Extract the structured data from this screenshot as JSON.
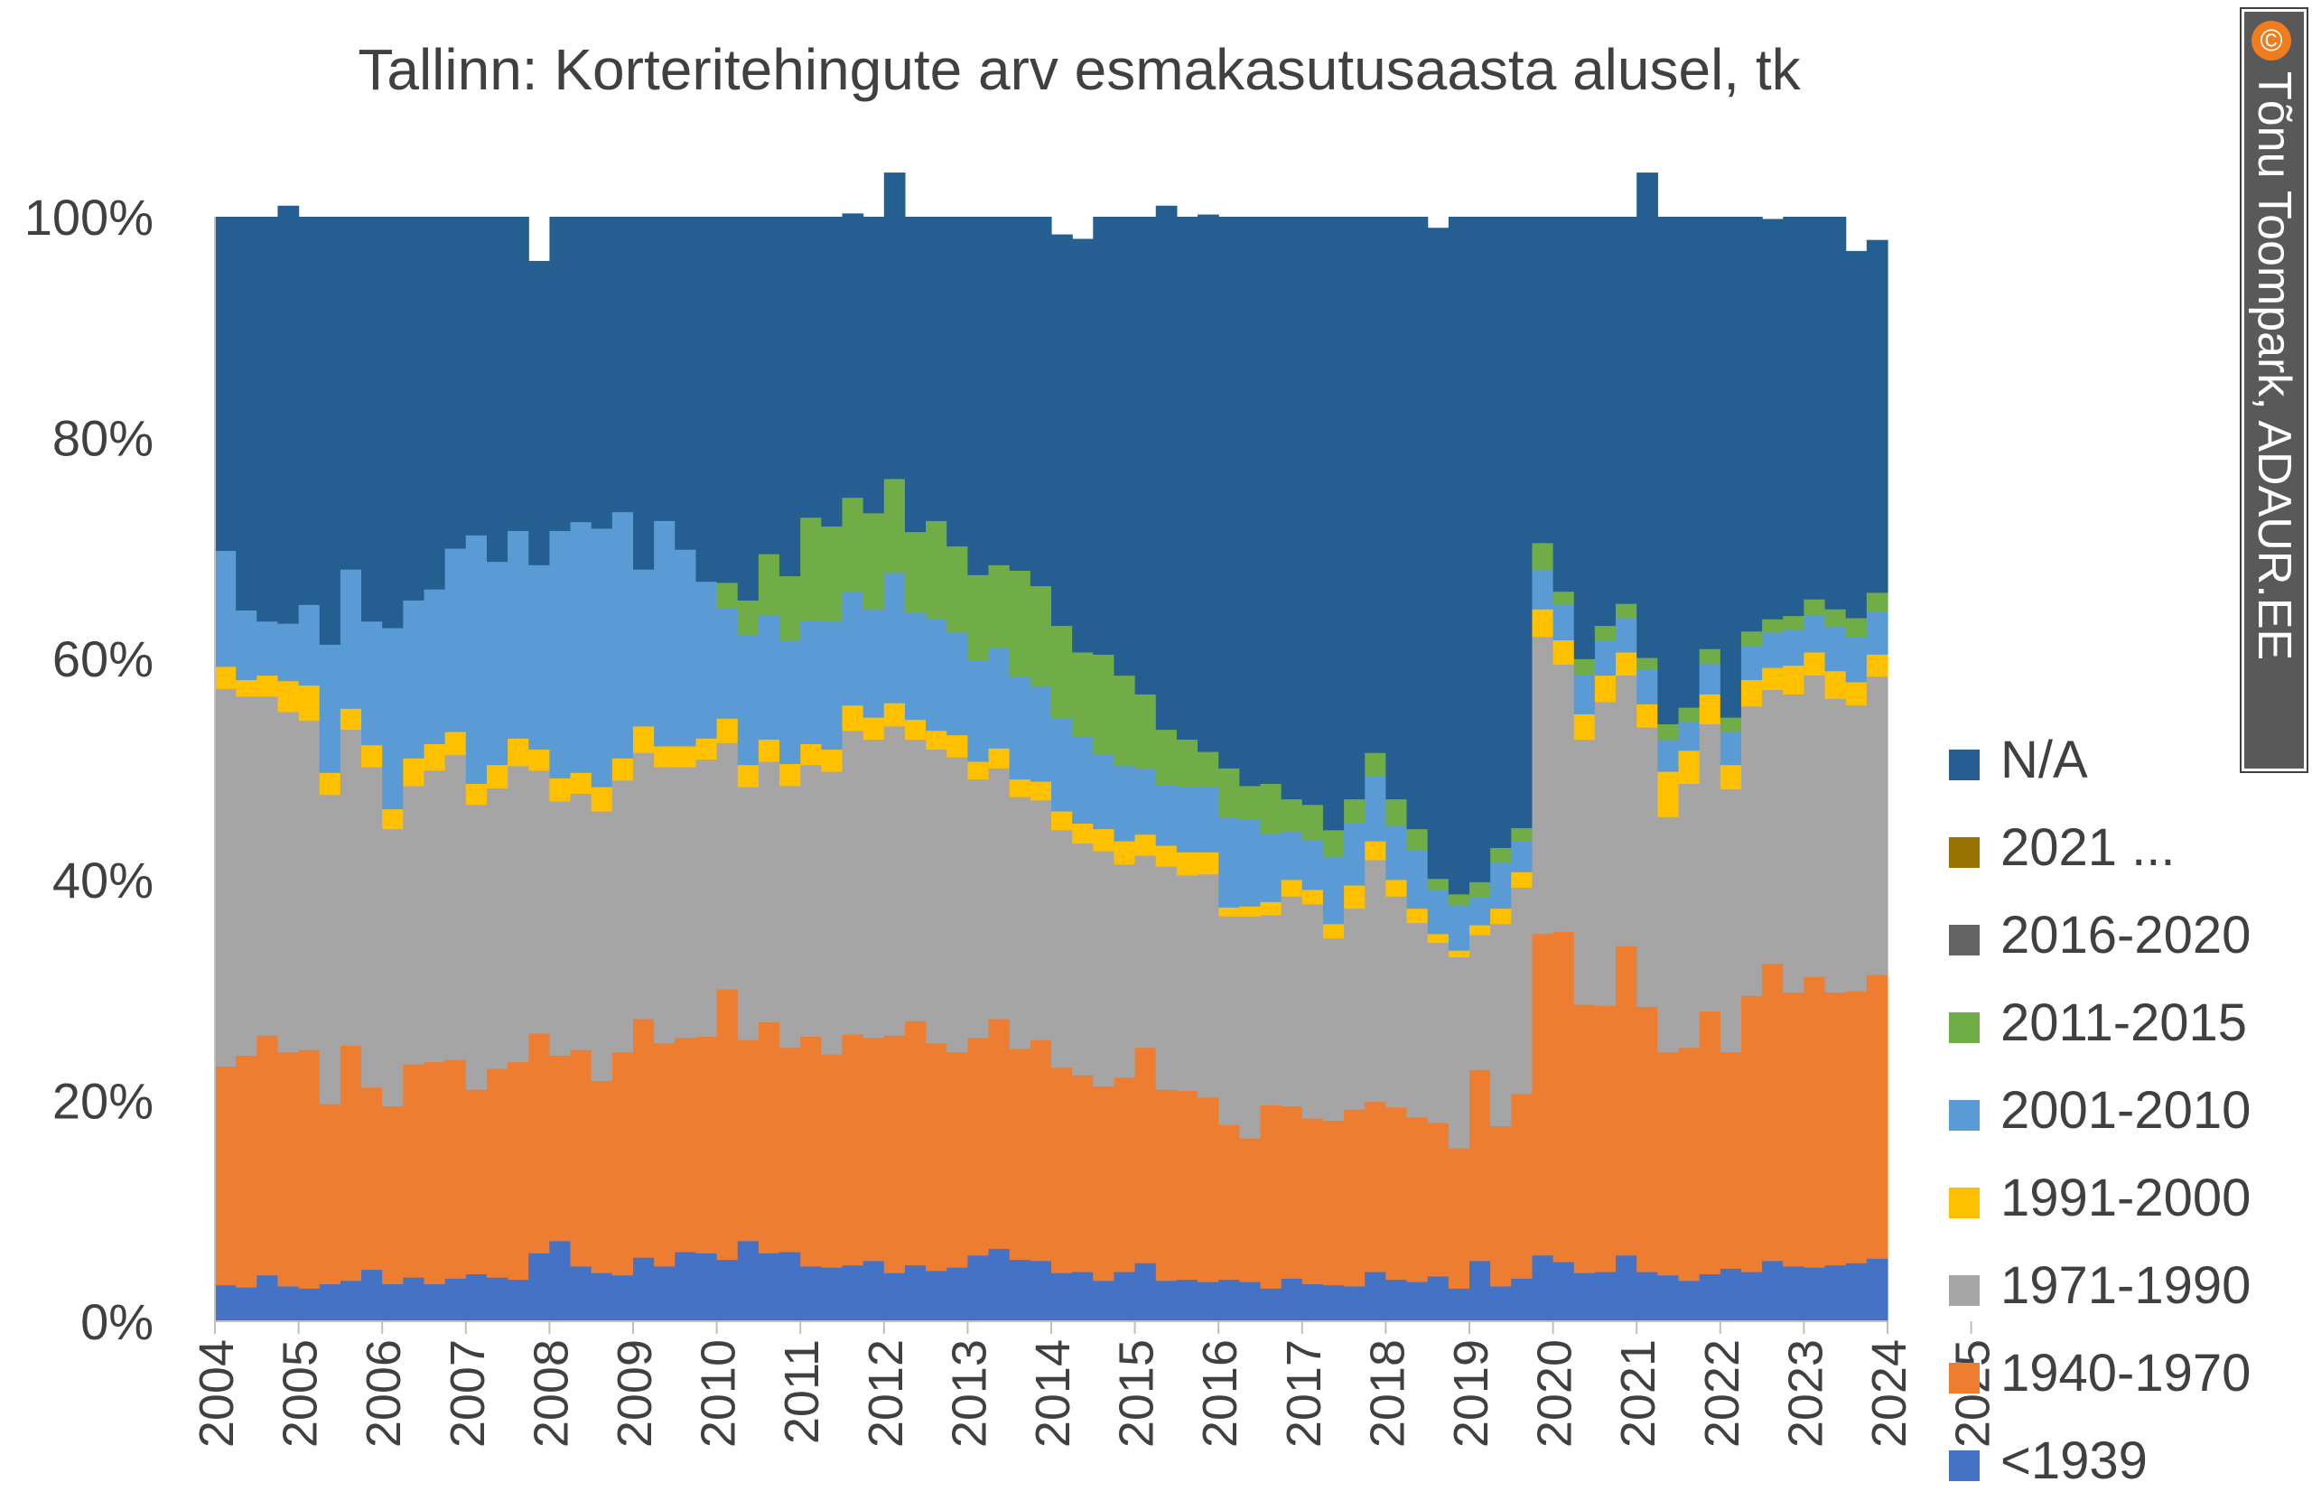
{
  "chart_data": {
    "type": "bar",
    "stacked": "percent",
    "title": "Tallinn: Korteritehingute arv esmakasutusaasta alusel, tk",
    "xlabel": "",
    "ylabel": "",
    "ylim": [
      0,
      100
    ],
    "y_ticks": [
      "0%",
      "20%",
      "40%",
      "60%",
      "80%",
      "100%"
    ],
    "x_tick_labels": [
      "2004",
      "2005",
      "2006",
      "2007",
      "2008",
      "2009",
      "2010",
      "2011",
      "2012",
      "2013",
      "2014",
      "2015",
      "2016",
      "2017",
      "2018",
      "2019",
      "2020",
      "2021",
      "2022",
      "2023",
      "2024",
      "2025"
    ],
    "legend_position": "right",
    "grid": false,
    "period_unit": "quarter",
    "start": "2004 Q1",
    "end": "2025 Q2",
    "series": [
      {
        "name": "<1939",
        "color": "#4472C4",
        "values": [
          3.3,
          3.1,
          4.2,
          3.2,
          3.0,
          3.4,
          3.7,
          4.7,
          3.4,
          4.0,
          3.4,
          3.9,
          4.3,
          4.0,
          3.8,
          6.2,
          7.3,
          5.0,
          4.4,
          4.2,
          5.8,
          5.0,
          6.3,
          6.2,
          5.6,
          7.3,
          6.2,
          6.3,
          5.0,
          4.9,
          5.1,
          5.5,
          4.4,
          5.1,
          4.6,
          4.9,
          6.0,
          6.6,
          5.6,
          5.5,
          4.4,
          4.5,
          3.7,
          4.5,
          5.3,
          3.7,
          3.8,
          3.6,
          3.8,
          3.6,
          3.0,
          3.9,
          3.4,
          3.3,
          3.2,
          4.5,
          3.8,
          3.6,
          4.1,
          3.0,
          5.5,
          3.2,
          3.9,
          6.0,
          5.4,
          4.4,
          4.5,
          6.0,
          4.5,
          4.2,
          3.7,
          4.3,
          4.8,
          4.5,
          5.5,
          5.0,
          4.9,
          5.1,
          5.3,
          5.7
        ]
      },
      {
        "name": "1940-1970",
        "color": "#ED7D31",
        "values": [
          19.8,
          21.0,
          21.7,
          21.2,
          21.6,
          16.3,
          21.3,
          16.5,
          16.1,
          19.3,
          20.1,
          19.8,
          16.7,
          18.9,
          19.7,
          19.9,
          16.8,
          19.6,
          17.4,
          20.2,
          21.6,
          20.2,
          19.4,
          19.6,
          24.5,
          18.2,
          20.9,
          18.5,
          20.8,
          19.3,
          20.9,
          20.2,
          21.5,
          22.1,
          20.6,
          19.5,
          19.7,
          20.8,
          19.1,
          20.0,
          18.6,
          17.8,
          17.6,
          17.6,
          19.5,
          17.3,
          17.1,
          16.7,
          14.0,
          13.0,
          16.6,
          15.6,
          15.0,
          14.9,
          16.0,
          15.4,
          15.6,
          14.9,
          13.9,
          12.7,
          17.3,
          14.5,
          16.7,
          29.1,
          29.9,
          24.3,
          24.1,
          28.0,
          24.0,
          20.2,
          21.1,
          23.8,
          19.6,
          25.0,
          26.9,
          24.8,
          26.3,
          24.7,
          24.6,
          25.7
        ]
      },
      {
        "name": "1971-1990",
        "color": "#A5A5A5",
        "values": [
          34.2,
          32.5,
          30.7,
          30.8,
          29.8,
          28.0,
          28.6,
          29.0,
          25.1,
          25.2,
          26.4,
          27.6,
          25.8,
          25.4,
          26.8,
          23.8,
          23.0,
          23.2,
          24.4,
          24.6,
          24.1,
          25.0,
          24.5,
          25.1,
          22.3,
          22.9,
          23.6,
          23.7,
          24.6,
          25.6,
          27.5,
          27.0,
          28.0,
          25.5,
          26.6,
          26.7,
          23.4,
          22.7,
          22.8,
          21.7,
          21.5,
          21.0,
          21.3,
          19.3,
          17.4,
          20.2,
          19.5,
          20.2,
          18.9,
          20.1,
          17.2,
          19.0,
          19.4,
          16.5,
          18.2,
          21.9,
          19.1,
          17.6,
          16.3,
          17.3,
          12.2,
          18.3,
          18.7,
          26.9,
          24.2,
          24.0,
          27.5,
          24.5,
          25.3,
          21.3,
          23.9,
          26.0,
          23.8,
          26.2,
          24.8,
          27.0,
          27.3,
          26.6,
          25.9,
          27.0
        ]
      },
      {
        "name": "1991-2000",
        "color": "#FFC000",
        "values": [
          2.0,
          1.5,
          1.9,
          2.8,
          3.2,
          2.0,
          1.9,
          2.0,
          1.8,
          2.5,
          2.4,
          2.1,
          1.9,
          2.1,
          2.5,
          1.9,
          2.1,
          1.9,
          2.2,
          2.0,
          2.4,
          1.9,
          1.9,
          1.9,
          2.2,
          2.0,
          2.0,
          2.0,
          1.9,
          2.0,
          2.3,
          2.0,
          2.1,
          1.8,
          1.7,
          2.0,
          1.6,
          1.8,
          1.6,
          1.7,
          1.7,
          1.8,
          2.0,
          2.1,
          1.9,
          1.9,
          2.1,
          2.0,
          0.8,
          0.9,
          1.2,
          1.5,
          1.3,
          1.3,
          2.1,
          1.7,
          1.5,
          1.3,
          0.8,
          0.6,
          0.9,
          1.4,
          1.4,
          2.5,
          2.2,
          2.3,
          2.4,
          2.1,
          2.1,
          4.1,
          3.0,
          2.7,
          2.2,
          2.4,
          2.0,
          2.6,
          2.1,
          2.5,
          2.1,
          2.0
        ]
      },
      {
        "name": "2001-2010",
        "color": "#5B9BD5",
        "values": [
          10.5,
          6.3,
          4.9,
          5.2,
          7.3,
          11.6,
          12.6,
          11.2,
          16.4,
          14.3,
          14.0,
          16.6,
          22.5,
          18.4,
          18.8,
          16.7,
          22.4,
          22.7,
          23.4,
          22.3,
          14.2,
          20.4,
          17.8,
          14.2,
          10.0,
          11.8,
          11.3,
          11.2,
          11.2,
          11.6,
          10.3,
          9.8,
          11.8,
          9.7,
          10.1,
          9.3,
          9.2,
          9.1,
          9.3,
          8.6,
          8.4,
          7.9,
          6.8,
          6.8,
          6.0,
          5.5,
          5.9,
          5.9,
          8.1,
          7.9,
          6.2,
          4.4,
          4.5,
          6.1,
          5.6,
          5.9,
          4.9,
          5.3,
          4.0,
          4.1,
          2.5,
          4.2,
          2.8,
          3.6,
          3.2,
          3.6,
          3.2,
          3.1,
          3.1,
          2.9,
          2.6,
          2.8,
          3.0,
          3.1,
          3.2,
          3.2,
          3.4,
          4.0,
          4.1,
          3.9
        ]
      },
      {
        "name": "2011-2015",
        "color": "#70AD47",
        "values": [
          0,
          0,
          0,
          0,
          0,
          0,
          0,
          0,
          0,
          0,
          0,
          0,
          0,
          0,
          0,
          0,
          0,
          0,
          0,
          0,
          0,
          0,
          0,
          0,
          2.3,
          3.1,
          5.5,
          5.8,
          9.3,
          8.6,
          8.5,
          8.7,
          8.5,
          7.3,
          8.9,
          7.8,
          7.7,
          7.5,
          9.6,
          9.1,
          8.4,
          7.6,
          9.0,
          8.2,
          6.7,
          5.0,
          4.3,
          3.2,
          4.5,
          3.0,
          4.5,
          2.9,
          3.2,
          2.4,
          2.2,
          2.1,
          2.4,
          1.9,
          1.0,
          1.0,
          1.4,
          1.3,
          1.2,
          2.4,
          1.2,
          1.4,
          1.3,
          1.3,
          1.1,
          1.4,
          1.3,
          1.3,
          1.3,
          1.3,
          1.2,
          1.3,
          1.4,
          1.6,
          1.7,
          1.7
        ]
      },
      {
        "name": "2016-2020",
        "color": "#636363",
        "values": [
          0,
          0,
          0,
          0,
          0,
          0,
          0,
          0,
          0,
          0,
          0,
          0,
          0,
          0,
          0,
          0,
          0,
          0,
          0,
          0,
          0,
          0,
          0,
          0,
          0,
          0,
          0,
          0,
          0,
          0,
          0,
          0,
          0,
          0,
          0,
          0,
          0,
          0,
          0,
          0,
          0,
          0,
          0,
          0,
          0,
          0,
          0,
          0,
          0,
          0,
          0,
          0,
          0,
          0,
          0,
          0,
          0,
          0,
          0,
          0,
          0,
          0,
          0,
          0,
          0,
          0,
          0,
          0,
          0,
          0,
          0,
          0,
          0,
          0,
          0,
          0,
          0,
          0,
          0,
          0
        ]
      },
      {
        "name": "2021 ...",
        "color": "#997300",
        "values": [
          0,
          0,
          0,
          0,
          0,
          0,
          0,
          0,
          0,
          0,
          0,
          0,
          0,
          0,
          0,
          0,
          0,
          0,
          0,
          0,
          0,
          0,
          0,
          0,
          0,
          0,
          0,
          0,
          0,
          0,
          0,
          0,
          0,
          0,
          0,
          0,
          0,
          0,
          0,
          0,
          0,
          0,
          0,
          0,
          0,
          0,
          0,
          0,
          0,
          0,
          0,
          0,
          0,
          0,
          0,
          0,
          0,
          0,
          0,
          0,
          0,
          0,
          0,
          0,
          0,
          0,
          0,
          0,
          0,
          0,
          0,
          0,
          0,
          0,
          0,
          0,
          0,
          0,
          0,
          0
        ]
      },
      {
        "name": "N/A",
        "color": "#255E91",
        "values": [
          30.2,
          35.6,
          36.6,
          37.8,
          35.1,
          38.7,
          31.9,
          36.6,
          37.2,
          34.7,
          33.7,
          30.0,
          28.8,
          31.2,
          28.4,
          27.5,
          28.4,
          27.6,
          28.2,
          26.7,
          31.9,
          27.5,
          30.1,
          33.0,
          33.1,
          34.7,
          30.5,
          32.5,
          27.2,
          28.0,
          25.7,
          26.8,
          27.7,
          28.5,
          27.5,
          29.8,
          32.4,
          31.5,
          32.0,
          33.4,
          35.4,
          37.4,
          39.6,
          41.5,
          43.2,
          47.4,
          47.3,
          48.6,
          49.9,
          51.5,
          51.3,
          52.7,
          53.2,
          55.5,
          52.7,
          48.5,
          52.7,
          55.4,
          58.9,
          61.3,
          60.2,
          57.1,
          55.3,
          29.5,
          33.9,
          40.0,
          37.0,
          35.0,
          43.9,
          45.9,
          44.4,
          39.1,
          45.3,
          37.5,
          36.2,
          36.1,
          34.6,
          35.5,
          33.2,
          31.9
        ]
      }
    ]
  },
  "legend": [
    "N/A",
    "2021 ...",
    "2016-2020",
    "2011-2015",
    "2001-2010",
    "1991-2000",
    "1971-1990",
    "1940-1970",
    "<1939"
  ],
  "watermark": {
    "symbol": "©",
    "text": "Tõnu Toompark, ADAUR.EE",
    "symbol_color": "#F07C1E"
  }
}
